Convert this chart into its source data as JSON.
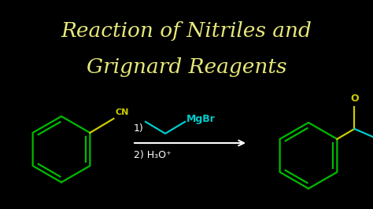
{
  "background_color": "#000000",
  "title_line1": "Reaction of Nitriles and",
  "title_line2": "Grignard Reagents",
  "title_color": "#e8e87a",
  "title_fontsize": 19,
  "benzene_color": "#00bb00",
  "cn_color": "#cccc00",
  "grignard_color": "#00cccc",
  "product_carbonyl_color": "#cccc00",
  "product_chain_color": "#00cccc",
  "white_color": "#ffffff",
  "step1_text": "1)",
  "step2_text": "2) H₃O⁺",
  "mgbr_text": "MgBr",
  "oxygen_text": "O",
  "cn_text": "CN"
}
